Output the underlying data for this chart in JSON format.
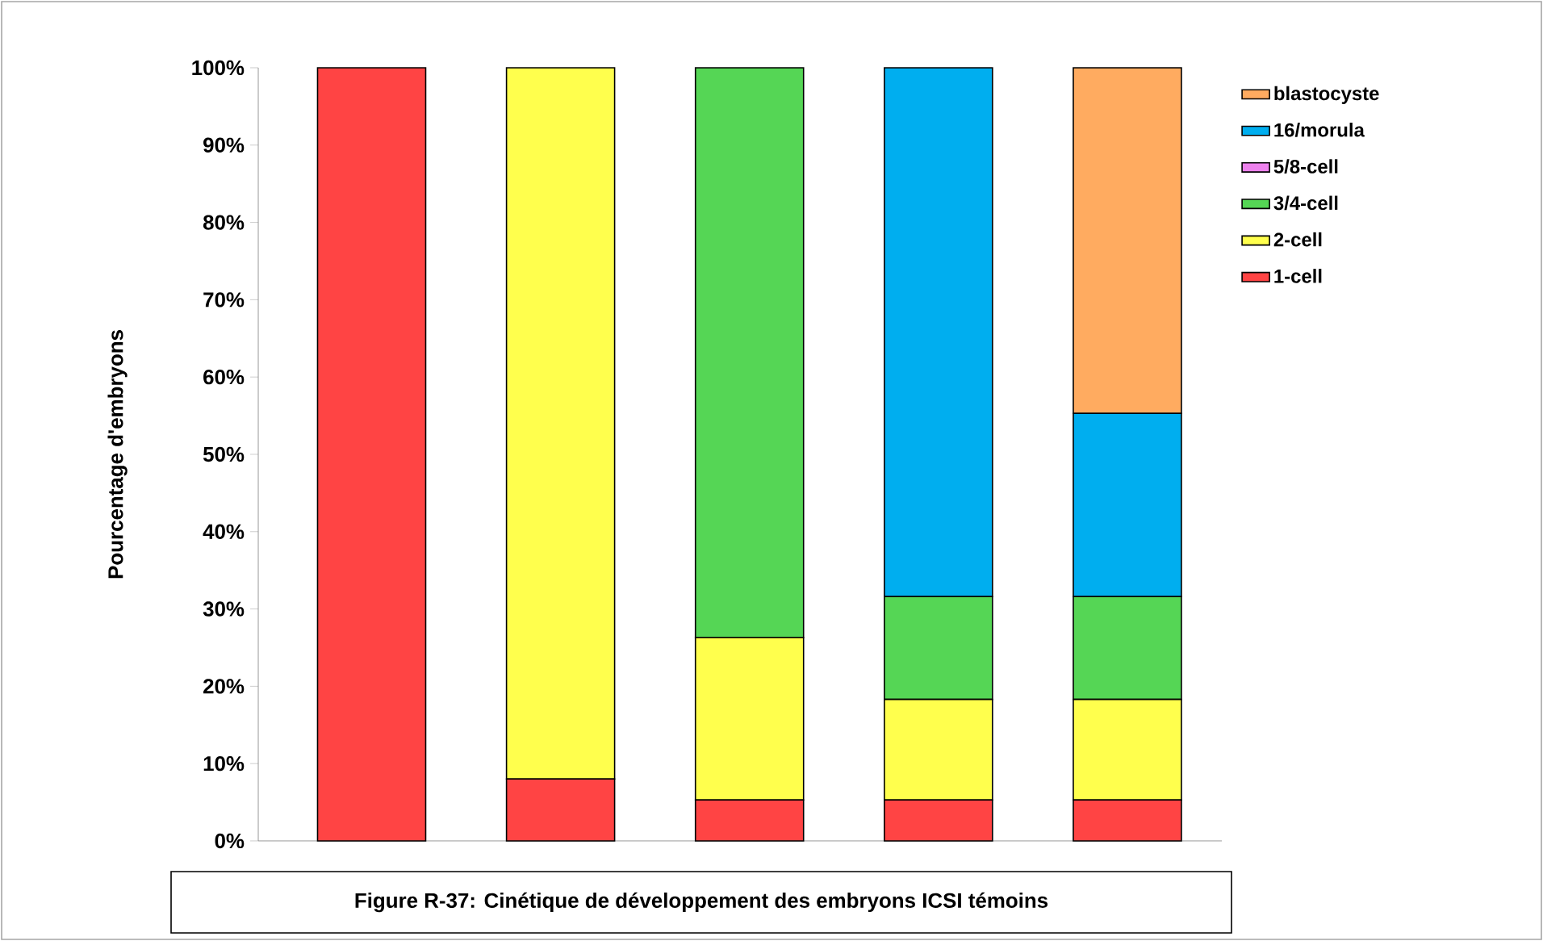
{
  "chart_data": {
    "type": "bar",
    "stacked": true,
    "title": "Figure R-37: Cinétique de développement des embryons ICSI témoins",
    "ylabel": "Pourcentage d'embryons",
    "categories": [
      null,
      null,
      null,
      null,
      null
    ],
    "series": [
      {
        "name": "1-cell",
        "color": "#ff4444",
        "values": [
          100,
          8,
          5.3,
          5.3,
          5.3
        ]
      },
      {
        "name": "2-cell",
        "color": "#ffff4d",
        "values": [
          0,
          92,
          21,
          13,
          13
        ]
      },
      {
        "name": "3/4-cell",
        "color": "#55d655",
        "values": [
          0,
          0,
          73.7,
          13.3,
          13.3
        ]
      },
      {
        "name": "5/8-cell",
        "color": "#ee82ee",
        "values": [
          0,
          0,
          0,
          0,
          0
        ]
      },
      {
        "name": "16/morula",
        "color": "#00aeef",
        "values": [
          0,
          0,
          0,
          68.4,
          23.7
        ]
      },
      {
        "name": "blastocyste",
        "color": "#ffab60",
        "values": [
          0,
          0,
          0,
          0,
          44.7
        ]
      }
    ],
    "ylim": [
      0,
      100
    ],
    "yticks": [
      {
        "value": 0,
        "label": "0%"
      },
      {
        "value": 10,
        "label": "10%"
      },
      {
        "value": 20,
        "label": "20%"
      },
      {
        "value": 30,
        "label": "30%"
      },
      {
        "value": 40,
        "label": "40%"
      },
      {
        "value": 50,
        "label": "50%"
      },
      {
        "value": 60,
        "label": "60%"
      },
      {
        "value": 70,
        "label": "70%"
      },
      {
        "value": 80,
        "label": "80%"
      },
      {
        "value": 90,
        "label": "90%"
      },
      {
        "value": 100,
        "label": "100%"
      }
    ],
    "legend": "right",
    "grid": false
  }
}
